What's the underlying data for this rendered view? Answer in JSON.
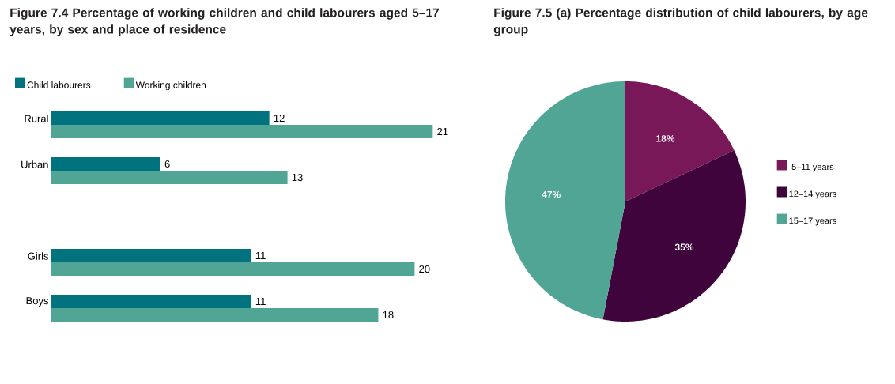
{
  "chart_data": [
    {
      "type": "bar",
      "orientation": "horizontal",
      "title": "Figure 7.4 Percentage of working children and child labourers aged 5–17 years, by sex and place of residence",
      "categories": [
        "Rural",
        "Urban",
        null,
        "Girls",
        "Boys"
      ],
      "series": [
        {
          "name": "Child labourers",
          "color": "#00737f",
          "values": [
            12,
            6,
            null,
            11,
            11
          ]
        },
        {
          "name": "Working children",
          "color": "#50a594",
          "values": [
            21,
            13,
            null,
            20,
            18
          ]
        }
      ],
      "data_labels": true,
      "legend": "top left",
      "tick_labels": "y"
    },
    {
      "type": "pie",
      "title": "Figure 7.5 (a) Percentage distribution of child labourers, by age group",
      "categories": [
        "5–11 years",
        "12–14 years",
        "15–17 years"
      ],
      "values": [
        18,
        35,
        47
      ],
      "colors": [
        "#791859",
        "#3f043b",
        "#50a594"
      ],
      "value_labels": [
        "18%",
        "35%",
        "47%"
      ],
      "legend": "right"
    }
  ]
}
